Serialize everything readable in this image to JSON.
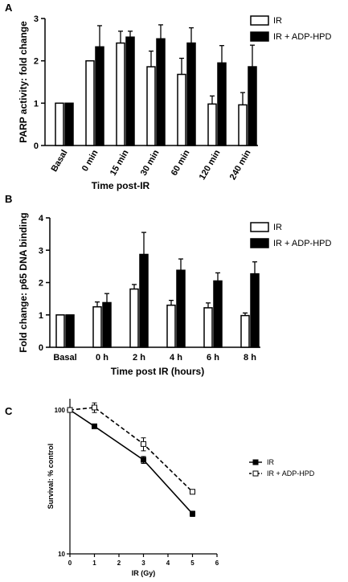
{
  "chart_data": [
    {
      "panel": "A",
      "type": "bar",
      "ylabel": "PARP activity: fold change",
      "xlabel": "Time post-IR",
      "ylim": [
        0,
        3
      ],
      "yticks": [
        0,
        1,
        2,
        3
      ],
      "categories": [
        "Basal",
        "0 min",
        "15 min",
        "30 min",
        "60 min",
        "120 min",
        "240 min"
      ],
      "legend_position": "top-right",
      "series": [
        {
          "name": "IR",
          "fill": "#ffffff",
          "values": [
            1.0,
            2.0,
            2.42,
            1.86,
            1.68,
            0.98,
            0.96
          ],
          "errors": [
            0,
            0,
            0.28,
            0.37,
            0.38,
            0.19,
            0.29
          ]
        },
        {
          "name": "IR + ADP-HPD",
          "fill": "#000000",
          "values": [
            1.0,
            2.33,
            2.56,
            2.52,
            2.42,
            1.95,
            1.86
          ],
          "errors": [
            0,
            0.5,
            0.14,
            0.33,
            0.36,
            0.41,
            0.51
          ]
        }
      ]
    },
    {
      "panel": "B",
      "type": "bar",
      "ylabel": "Fold change: p65 DNA binding",
      "xlabel": "Time post IR (hours)",
      "ylim": [
        0,
        4
      ],
      "yticks": [
        0,
        1,
        2,
        3,
        4
      ],
      "categories": [
        "Basal",
        "0 h",
        "2 h",
        "4 h",
        "6 h",
        "8 h"
      ],
      "legend_position": "top-right",
      "series": [
        {
          "name": "IR",
          "fill": "#ffffff",
          "values": [
            1.0,
            1.25,
            1.8,
            1.3,
            1.22,
            0.98
          ],
          "errors": [
            0,
            0.15,
            0.14,
            0.15,
            0.15,
            0.08
          ]
        },
        {
          "name": "IR + ADP-HPD",
          "fill": "#000000",
          "values": [
            1.0,
            1.38,
            2.87,
            2.38,
            2.05,
            2.27
          ],
          "errors": [
            0,
            0.28,
            0.68,
            0.35,
            0.25,
            0.37
          ]
        }
      ]
    },
    {
      "panel": "C",
      "type": "line",
      "ylabel": "Survival: % control",
      "xlabel": "IR (Gy)",
      "xlim": [
        0,
        6
      ],
      "xticks": [
        0,
        1,
        2,
        3,
        4,
        5,
        6
      ],
      "ylim": [
        10,
        100
      ],
      "yscale": "log",
      "yticks": [
        10,
        100
      ],
      "legend_position": "right",
      "series": [
        {
          "name": "IR",
          "marker": "filled-square",
          "line": "solid",
          "x": [
            0,
            1,
            3,
            5
          ],
          "y": [
            100,
            77,
            45,
            19
          ],
          "errors": [
            0,
            0,
            2.5,
            0.8
          ]
        },
        {
          "name": "IR + ADP-HPD",
          "marker": "open-square",
          "line": "dashed",
          "x": [
            0,
            1,
            3,
            5
          ],
          "y": [
            100,
            104,
            58,
            27
          ],
          "errors": [
            0,
            8,
            6,
            0.9
          ]
        }
      ]
    }
  ]
}
